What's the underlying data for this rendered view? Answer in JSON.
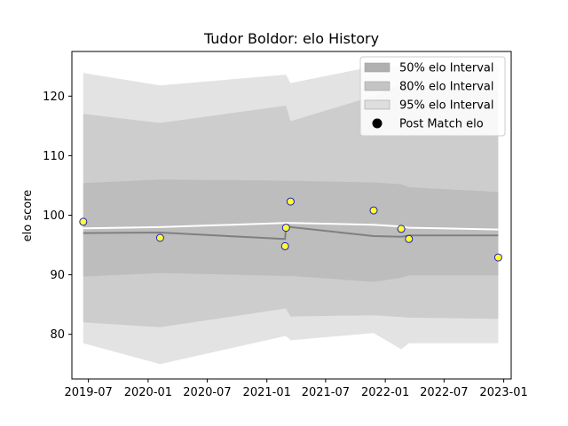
{
  "chart_data": {
    "type": "area",
    "title": "Tudor Boldor: elo History",
    "xlabel": "",
    "ylabel": "elo score",
    "xlim": [
      "2019-05-11",
      "2023-01-24"
    ],
    "ylim": [
      72.5,
      127.5
    ],
    "x_ticks": [
      "2019-07",
      "2020-01",
      "2020-07",
      "2021-01",
      "2021-07",
      "2022-01",
      "2022-07",
      "2023-01"
    ],
    "y_ticks": [
      80,
      90,
      100,
      110,
      120
    ],
    "grid": false,
    "legend_position": "top-right",
    "colors": {
      "band95": "#e3e3e3",
      "band80": "#cdcdcd",
      "band50": "#bdbdbd",
      "median": "#808080",
      "mean": "#ffffff",
      "marker_face": "#ffff33",
      "marker_edge": "#1f1fb4"
    },
    "legend": [
      {
        "key": "band50",
        "label": "50% elo Interval",
        "kind": "patch",
        "color": "#b0b0b0"
      },
      {
        "key": "band80",
        "label": "80% elo Interval",
        "kind": "patch",
        "color": "#c4c4c4"
      },
      {
        "key": "band95",
        "label": "95% elo Interval",
        "kind": "patch",
        "color": "#dedede"
      },
      {
        "key": "points",
        "label": "Post Match elo",
        "kind": "marker",
        "color": "#000000"
      }
    ],
    "bands": {
      "x": [
        "2019-06-15",
        "2020-02-07",
        "2021-02-26",
        "2021-03-01",
        "2021-03-15",
        "2021-11-26",
        "2022-02-19",
        "2022-03-15",
        "2022-12-15"
      ],
      "p95_lo": [
        78.5,
        75.0,
        79.7,
        79.7,
        79.0,
        80.2,
        77.5,
        78.5,
        78.5
      ],
      "p95_hi": [
        123.9,
        121.8,
        123.6,
        123.6,
        122.2,
        125.0,
        125.0,
        125.0,
        125.0
      ],
      "p80_lo": [
        82.0,
        81.2,
        84.3,
        84.3,
        83.0,
        83.2,
        82.9,
        82.8,
        82.6
      ],
      "p80_hi": [
        117.0,
        115.5,
        118.4,
        118.4,
        115.8,
        120.0,
        122.0,
        121.5,
        121.0
      ],
      "p50_lo": [
        89.7,
        90.3,
        89.8,
        89.8,
        89.8,
        88.8,
        89.5,
        89.9,
        89.9
      ],
      "p50_hi": [
        105.4,
        106.0,
        105.8,
        105.8,
        105.8,
        105.5,
        105.2,
        104.7,
        103.9
      ],
      "median": [
        97.0,
        97.1,
        96.0,
        98.0,
        98.0,
        96.5,
        96.4,
        96.6,
        96.6
      ],
      "mean": [
        97.8,
        98.0,
        98.7,
        98.7,
        98.7,
        98.4,
        98.1,
        97.9,
        97.6
      ]
    },
    "points": {
      "x": [
        "2019-06-15",
        "2020-02-07",
        "2021-02-26",
        "2021-03-01",
        "2021-03-15",
        "2021-11-26",
        "2022-02-19",
        "2022-03-15",
        "2022-12-15"
      ],
      "y": [
        98.9,
        96.2,
        94.8,
        97.9,
        102.3,
        100.8,
        97.7,
        96.0,
        92.9
      ]
    }
  }
}
